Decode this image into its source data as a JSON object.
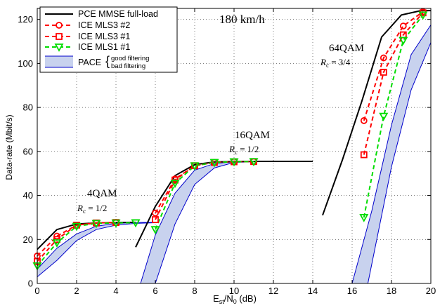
{
  "chart_data": {
    "type": "line",
    "xlabel": "E",
    "xlabel_sub1": "st",
    "xlabel_mid": "/N",
    "xlabel_sub2": "0",
    "xlabel_unit": " (dB)",
    "ylabel": "Data-rate (Mbit/s)",
    "xlim": [
      0,
      20
    ],
    "ylim": [
      0,
      125
    ],
    "xticks": [
      0,
      2,
      4,
      6,
      8,
      10,
      12,
      14,
      16,
      18,
      20
    ],
    "yticks": [
      0,
      20,
      40,
      60,
      80,
      100,
      120
    ],
    "grid": true,
    "legend_position": "top-left",
    "annotations": {
      "speed": "180 km/h",
      "qam4": "4QAM",
      "rc4": "R",
      "rc4_sub": "c",
      "rc4_val": " = 1/2",
      "qam16": "16QAM",
      "rc16": "R",
      "rc16_sub": "c",
      "rc16_val": " = 1/2",
      "qam64": "64QAM",
      "rc64": "R",
      "rc64_sub": "c",
      "rc64_val": " = 3/4"
    },
    "legend": {
      "pce": "PCE MMSE full-load",
      "ice2": "ICE MLS3 #2",
      "ice3_1": "ICE MLS3 #1",
      "ice1_1": "ICE MLS1 #1",
      "pace": "PACE",
      "pace_good": "good filtering",
      "pace_bad": "bad filtering"
    },
    "series": [
      {
        "name": "PCE MMSE full-load",
        "key": "pce",
        "color": "#000000",
        "dash": "",
        "marker": "none",
        "segments": [
          {
            "x": [
              0,
              1,
              2,
              3,
              4,
              5
            ],
            "y": [
              15.5,
              24.5,
              27,
              27.5,
              27.7,
              27.8
            ]
          },
          {
            "x": [
              5,
              6,
              7,
              8,
              9,
              10,
              11,
              12,
              13,
              14
            ],
            "y": [
              16.5,
              35,
              49,
              54,
              55.2,
              55.4,
              55.5,
              55.5,
              55.5,
              55.5
            ]
          },
          {
            "x": [
              14.5,
              15.5,
              16.5,
              17.5,
              18.5,
              19.5,
              20
            ],
            "y": [
              31,
              56,
              83,
              112,
              122,
              124,
              124
            ]
          }
        ]
      },
      {
        "name": "ICE MLS3 #2",
        "key": "ice2",
        "color": "#ff0000",
        "dash": "6,4",
        "marker": "circle",
        "segments": [
          {
            "x": [
              0,
              1,
              2,
              3,
              4
            ],
            "y": [
              12.5,
              21.5,
              26.5,
              27.5,
              27.7
            ]
          },
          {
            "x": [
              6,
              7,
              8,
              9,
              10,
              11
            ],
            "y": [
              32,
              47.5,
              53.5,
              55,
              55.3,
              55.4
            ]
          },
          {
            "x": [
              16.6,
              17.6,
              18.6,
              19.6
            ],
            "y": [
              74,
              102.5,
              117,
              123.5
            ]
          }
        ]
      },
      {
        "name": "ICE MLS3 #1",
        "key": "ice3_1",
        "color": "#ff0000",
        "dash": "6,4",
        "marker": "square",
        "segments": [
          {
            "x": [
              0,
              1,
              2,
              3,
              4
            ],
            "y": [
              10,
              20,
              26.5,
              27.5,
              27.7
            ]
          },
          {
            "x": [
              6,
              7,
              8,
              9,
              10,
              11
            ],
            "y": [
              29,
              47,
              53.5,
              55,
              55.3,
              55.4
            ]
          },
          {
            "x": [
              16.6,
              17.6,
              18.6,
              19.6
            ],
            "y": [
              58.5,
              96,
              113,
              123
            ]
          }
        ]
      },
      {
        "name": "ICE MLS1 #1",
        "key": "ice1_1",
        "color": "#00dd00",
        "dash": "6,4",
        "marker": "triangle-down",
        "segments": [
          {
            "x": [
              0,
              1,
              2,
              3,
              4,
              5
            ],
            "y": [
              8,
              18.5,
              26,
              27.3,
              27.5,
              27.6
            ]
          },
          {
            "x": [
              6,
              7,
              8,
              9,
              10,
              11
            ],
            "y": [
              24.5,
              45.5,
              53.5,
              55,
              55.3,
              55.4
            ]
          },
          {
            "x": [
              16.6,
              17.6,
              18.6,
              19.6
            ],
            "y": [
              30,
              76,
              110.5,
              122
            ]
          }
        ]
      },
      {
        "name": "PACE",
        "key": "pace",
        "type": "band",
        "color": "#0000cc",
        "fill": "#c8d2ee",
        "bands": [
          {
            "good_x": [
              0,
              1,
              2,
              3,
              4,
              5,
              6
            ],
            "good_y": [
              6.5,
              16,
              22.5,
              26,
              27.3,
              27.7,
              27.8
            ],
            "bad_x": [
              0,
              1,
              2,
              3,
              4,
              5,
              6
            ],
            "bad_y": [
              3,
              10.5,
              19.5,
              24.5,
              26.5,
              27.3,
              27.6
            ]
          },
          {
            "good_x": [
              5.25,
              6,
              7,
              8,
              9,
              10,
              11
            ],
            "good_y": [
              0,
              22,
              41,
              51.5,
              54.5,
              55.3,
              55.4
            ],
            "bad_x": [
              6,
              7,
              8,
              9,
              10,
              11
            ],
            "bad_y": [
              0,
              27,
              45,
              52.5,
              55,
              55.3
            ]
          },
          {
            "good_x": [
              16,
              17,
              18,
              19,
              20
            ],
            "good_y": [
              0,
              33,
              72,
              104,
              117.5
            ],
            "bad_x": [
              16.8,
              18,
              19,
              20
            ],
            "bad_y": [
              0,
              53,
              88,
              109.5
            ]
          }
        ]
      }
    ]
  }
}
